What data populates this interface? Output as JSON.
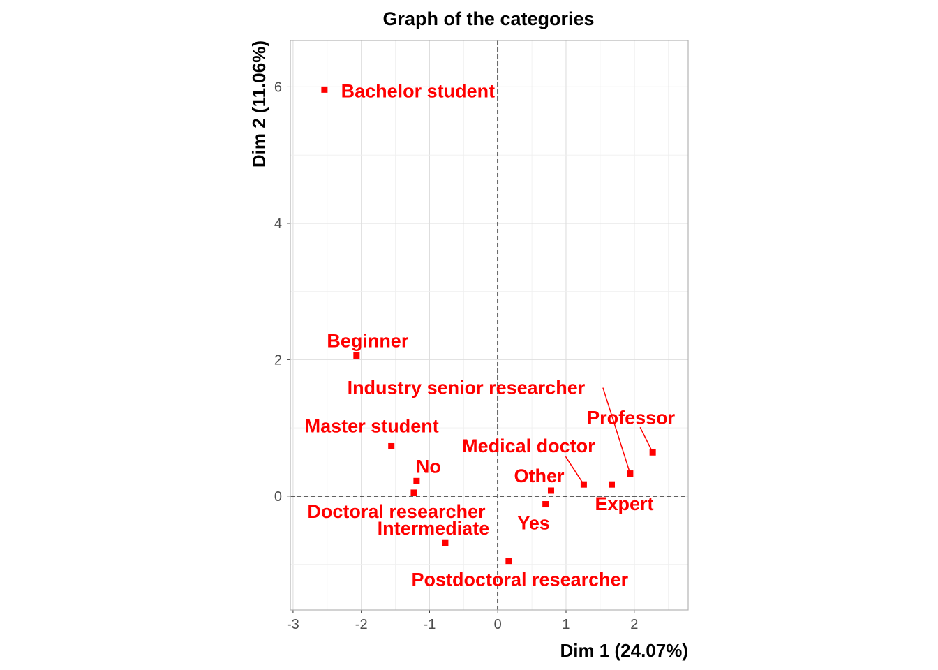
{
  "chart_data": {
    "type": "scatter",
    "title": "Graph of the categories",
    "xlabel": "Dim 1 (24.07%)",
    "ylabel": "Dim 2 (11.06%)",
    "xlim": [
      -3.04,
      2.79
    ],
    "ylim": [
      -1.67,
      6.68
    ],
    "xticks": [
      -3,
      -2,
      -1,
      0,
      1,
      2
    ],
    "yticks": [
      0,
      2,
      4,
      6
    ],
    "grid": true,
    "reference_lines": {
      "x": 0,
      "y": 0
    },
    "point_color": "#ff0000",
    "points": [
      {
        "label": "Bachelor student",
        "x": -2.54,
        "y": 5.96
      },
      {
        "label": "Beginner",
        "x": -2.07,
        "y": 2.06
      },
      {
        "label": "Master student",
        "x": -1.56,
        "y": 0.73
      },
      {
        "label": "No",
        "x": -1.19,
        "y": 0.22
      },
      {
        "label": "Doctoral researcher",
        "x": -1.23,
        "y": 0.05
      },
      {
        "label": "Intermediate",
        "x": -0.77,
        "y": -0.69
      },
      {
        "label": "Postdoctoral researcher",
        "x": 0.16,
        "y": -0.95
      },
      {
        "label": "Yes",
        "x": 0.7,
        "y": -0.12
      },
      {
        "label": "Other",
        "x": 0.78,
        "y": 0.08
      },
      {
        "label": "Medical doctor",
        "x": 1.26,
        "y": 0.17
      },
      {
        "label": "Expert",
        "x": 1.67,
        "y": 0.17
      },
      {
        "label": "Industry senior researcher",
        "x": 1.94,
        "y": 0.33
      },
      {
        "label": "Professor",
        "x": 2.27,
        "y": 0.64
      }
    ]
  }
}
